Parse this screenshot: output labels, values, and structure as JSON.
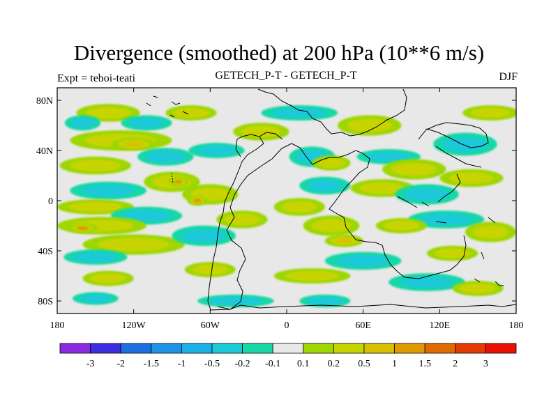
{
  "chart_data": {
    "type": "heatmap",
    "title": "Divergence (smoothed) at 200 hPa (10**6 m/s)",
    "subtitle_left": "Expt = teboi-teati",
    "subtitle_center": "GETECH_P-T - GETECH_P-T",
    "subtitle_right": "DJF",
    "x_ticks": [
      "180",
      "120W",
      "60W",
      "0",
      "60E",
      "120E",
      "180"
    ],
    "x_tick_values": [
      -180,
      -120,
      -60,
      0,
      60,
      120,
      180
    ],
    "y_ticks": [
      "80N",
      "40N",
      "0",
      "40S",
      "80S"
    ],
    "y_tick_values": [
      80,
      40,
      0,
      -40,
      -80
    ],
    "xlim": [
      -180,
      180
    ],
    "ylim": [
      -90,
      90
    ],
    "colorbar_labels": [
      "-3",
      "-2",
      "-1.5",
      "-1",
      "-0.5",
      "-0.2",
      "-0.1",
      "0.1",
      "0.2",
      "0.5",
      "1",
      "1.5",
      "2",
      "3"
    ],
    "colorbar_colors": [
      "#8a2be2",
      "#3c2ee0",
      "#1c6fe0",
      "#1e93e6",
      "#18b1e6",
      "#1ac9d9",
      "#18d7a6",
      "#e8e8e8",
      "#9ed600",
      "#c8d400",
      "#d8c000",
      "#e09a00",
      "#e06a00",
      "#e33a00",
      "#e81000"
    ],
    "blobs": [
      {
        "lon": -140,
        "lat": 70,
        "rx": 25,
        "ry": 7,
        "level": 0.3
      },
      {
        "lon": -75,
        "lat": 70,
        "rx": 20,
        "ry": 6,
        "level": 0.3
      },
      {
        "lon": -130,
        "lat": 48,
        "rx": 40,
        "ry": 8,
        "level": 0.35
      },
      {
        "lon": -120,
        "lat": 45,
        "rx": 18,
        "ry": 5,
        "level": 0.7
      },
      {
        "lon": -160,
        "lat": 62,
        "rx": 14,
        "ry": 6,
        "level": -0.3
      },
      {
        "lon": -110,
        "lat": 62,
        "rx": 20,
        "ry": 6,
        "level": -0.3
      },
      {
        "lon": -55,
        "lat": 40,
        "rx": 22,
        "ry": 6,
        "level": -0.3
      },
      {
        "lon": -95,
        "lat": 35,
        "rx": 22,
        "ry": 7,
        "level": -0.35
      },
      {
        "lon": -150,
        "lat": 28,
        "rx": 28,
        "ry": 7,
        "level": 0.35
      },
      {
        "lon": -90,
        "lat": 15,
        "rx": 22,
        "ry": 8,
        "level": 0.5
      },
      {
        "lon": -85,
        "lat": 15,
        "rx": 8,
        "ry": 4,
        "level": 1.2
      },
      {
        "lon": -140,
        "lat": 8,
        "rx": 30,
        "ry": 7,
        "level": -0.3
      },
      {
        "lon": -60,
        "lat": 5,
        "rx": 22,
        "ry": 8,
        "level": 0.4
      },
      {
        "lon": -70,
        "lat": 0,
        "rx": 8,
        "ry": 4,
        "level": 1.2
      },
      {
        "lon": -150,
        "lat": -5,
        "rx": 30,
        "ry": 6,
        "level": 0.35
      },
      {
        "lon": -110,
        "lat": -12,
        "rx": 28,
        "ry": 7,
        "level": -0.4
      },
      {
        "lon": -145,
        "lat": -20,
        "rx": 35,
        "ry": 7,
        "level": 0.45
      },
      {
        "lon": -160,
        "lat": -22,
        "rx": 12,
        "ry": 4,
        "level": 1.1
      },
      {
        "lon": -120,
        "lat": -35,
        "rx": 40,
        "ry": 8,
        "level": 0.35
      },
      {
        "lon": -150,
        "lat": -45,
        "rx": 25,
        "ry": 6,
        "level": -0.3
      },
      {
        "lon": -65,
        "lat": -28,
        "rx": 25,
        "ry": 8,
        "level": -0.35
      },
      {
        "lon": -35,
        "lat": -15,
        "rx": 20,
        "ry": 7,
        "level": 0.3
      },
      {
        "lon": -140,
        "lat": -62,
        "rx": 20,
        "ry": 6,
        "level": 0.3
      },
      {
        "lon": -60,
        "lat": -55,
        "rx": 20,
        "ry": 6,
        "level": 0.35
      },
      {
        "lon": -40,
        "lat": -80,
        "rx": 30,
        "ry": 5,
        "level": -0.3
      },
      {
        "lon": -150,
        "lat": -78,
        "rx": 18,
        "ry": 5,
        "level": -0.3
      },
      {
        "lon": -20,
        "lat": 55,
        "rx": 22,
        "ry": 7,
        "level": 0.3
      },
      {
        "lon": 10,
        "lat": 70,
        "rx": 30,
        "ry": 6,
        "level": -0.3
      },
      {
        "lon": 20,
        "lat": 35,
        "rx": 18,
        "ry": 8,
        "level": -0.4
      },
      {
        "lon": 35,
        "lat": 30,
        "rx": 15,
        "ry": 6,
        "level": 0.5
      },
      {
        "lon": 30,
        "lat": 12,
        "rx": 20,
        "ry": 7,
        "level": -0.3
      },
      {
        "lon": 10,
        "lat": -5,
        "rx": 20,
        "ry": 7,
        "level": 0.35
      },
      {
        "lon": 35,
        "lat": -20,
        "rx": 22,
        "ry": 8,
        "level": 0.4
      },
      {
        "lon": 45,
        "lat": -32,
        "rx": 15,
        "ry": 5,
        "level": 0.9
      },
      {
        "lon": 60,
        "lat": -48,
        "rx": 30,
        "ry": 7,
        "level": -0.35
      },
      {
        "lon": 20,
        "lat": -60,
        "rx": 30,
        "ry": 6,
        "level": 0.3
      },
      {
        "lon": 65,
        "lat": 60,
        "rx": 25,
        "ry": 8,
        "level": 0.3
      },
      {
        "lon": 80,
        "lat": 35,
        "rx": 25,
        "ry": 6,
        "level": -0.35
      },
      {
        "lon": 100,
        "lat": 25,
        "rx": 25,
        "ry": 8,
        "level": 0.35
      },
      {
        "lon": 75,
        "lat": 10,
        "rx": 25,
        "ry": 7,
        "level": 0.3
      },
      {
        "lon": 110,
        "lat": 5,
        "rx": 25,
        "ry": 8,
        "level": -0.35
      },
      {
        "lon": 140,
        "lat": 45,
        "rx": 25,
        "ry": 9,
        "level": -0.3
      },
      {
        "lon": 145,
        "lat": 18,
        "rx": 25,
        "ry": 7,
        "level": 0.4
      },
      {
        "lon": 160,
        "lat": 70,
        "rx": 22,
        "ry": 6,
        "level": 0.3
      },
      {
        "lon": 125,
        "lat": -15,
        "rx": 30,
        "ry": 7,
        "level": -0.35
      },
      {
        "lon": 90,
        "lat": -20,
        "rx": 20,
        "ry": 6,
        "level": 0.35
      },
      {
        "lon": 160,
        "lat": -25,
        "rx": 20,
        "ry": 8,
        "level": 0.4
      },
      {
        "lon": 130,
        "lat": -42,
        "rx": 20,
        "ry": 6,
        "level": 0.3
      },
      {
        "lon": 110,
        "lat": -65,
        "rx": 30,
        "ry": 7,
        "level": -0.3
      },
      {
        "lon": 150,
        "lat": -70,
        "rx": 20,
        "ry": 6,
        "level": 0.3
      },
      {
        "lon": 30,
        "lat": -80,
        "rx": 20,
        "ry": 5,
        "level": -0.3
      }
    ]
  }
}
